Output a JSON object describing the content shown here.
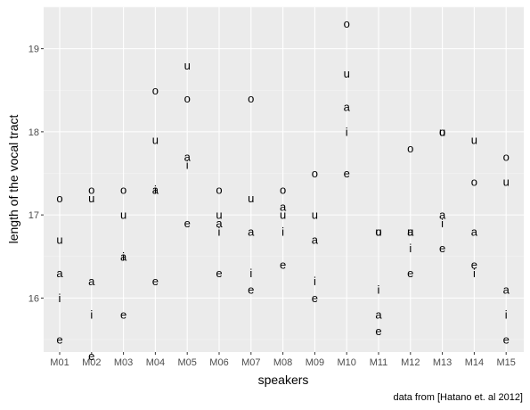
{
  "chart_data": {
    "type": "scatter",
    "title": "",
    "xlabel": "speakers",
    "ylabel": "length of the vocal tract",
    "caption": "data from [Hatano et. al 2012]",
    "categories": [
      "M01",
      "M02",
      "M03",
      "M04",
      "M05",
      "M06",
      "M07",
      "M08",
      "M09",
      "M10",
      "M11",
      "M12",
      "M13",
      "M14",
      "M15"
    ],
    "ylim": [
      15.35,
      19.5
    ],
    "yticks": [
      16,
      17,
      18,
      19
    ],
    "grid": true,
    "legend": "none",
    "colors": {
      "panel": "#ebebeb",
      "grid_major": "#ffffff",
      "grid_minor": "#f5f5f5",
      "text": "#000000",
      "tick": "#4d4d4d"
    },
    "points": [
      {
        "x": "M01",
        "label": "o",
        "y": 17.2
      },
      {
        "x": "M01",
        "label": "u",
        "y": 16.7
      },
      {
        "x": "M01",
        "label": "a",
        "y": 16.3
      },
      {
        "x": "M01",
        "label": "i",
        "y": 16.0
      },
      {
        "x": "M01",
        "label": "e",
        "y": 15.5
      },
      {
        "x": "M02",
        "label": "o",
        "y": 17.3
      },
      {
        "x": "M02",
        "label": "u",
        "y": 17.2
      },
      {
        "x": "M02",
        "label": "a",
        "y": 16.2
      },
      {
        "x": "M02",
        "label": "i",
        "y": 15.8
      },
      {
        "x": "M02",
        "label": "e",
        "y": 15.3
      },
      {
        "x": "M03",
        "label": "o",
        "y": 17.3
      },
      {
        "x": "M03",
        "label": "u",
        "y": 17.0
      },
      {
        "x": "M03",
        "label": "i",
        "y": 16.5
      },
      {
        "x": "M03",
        "label": "a",
        "y": 16.5
      },
      {
        "x": "M03",
        "label": "e",
        "y": 15.8
      },
      {
        "x": "M04",
        "label": "o",
        "y": 18.5
      },
      {
        "x": "M04",
        "label": "u",
        "y": 17.9
      },
      {
        "x": "M04",
        "label": "i",
        "y": 17.3
      },
      {
        "x": "M04",
        "label": "a",
        "y": 17.3
      },
      {
        "x": "M04",
        "label": "e",
        "y": 16.2
      },
      {
        "x": "M05",
        "label": "u",
        "y": 18.8
      },
      {
        "x": "M05",
        "label": "o",
        "y": 18.4
      },
      {
        "x": "M05",
        "label": "a",
        "y": 17.7
      },
      {
        "x": "M05",
        "label": "i",
        "y": 17.6
      },
      {
        "x": "M05",
        "label": "e",
        "y": 16.9
      },
      {
        "x": "M06",
        "label": "o",
        "y": 17.3
      },
      {
        "x": "M06",
        "label": "u",
        "y": 17.0
      },
      {
        "x": "M06",
        "label": "a",
        "y": 16.9
      },
      {
        "x": "M06",
        "label": "i",
        "y": 16.8
      },
      {
        "x": "M06",
        "label": "e",
        "y": 16.3
      },
      {
        "x": "M07",
        "label": "o",
        "y": 18.4
      },
      {
        "x": "M07",
        "label": "u",
        "y": 17.2
      },
      {
        "x": "M07",
        "label": "a",
        "y": 16.8
      },
      {
        "x": "M07",
        "label": "i",
        "y": 16.3
      },
      {
        "x": "M07",
        "label": "e",
        "y": 16.1
      },
      {
        "x": "M08",
        "label": "o",
        "y": 17.3
      },
      {
        "x": "M08",
        "label": "a",
        "y": 17.1
      },
      {
        "x": "M08",
        "label": "u",
        "y": 17.0
      },
      {
        "x": "M08",
        "label": "i",
        "y": 16.8
      },
      {
        "x": "M08",
        "label": "e",
        "y": 16.4
      },
      {
        "x": "M09",
        "label": "o",
        "y": 17.5
      },
      {
        "x": "M09",
        "label": "u",
        "y": 17.0
      },
      {
        "x": "M09",
        "label": "a",
        "y": 16.7
      },
      {
        "x": "M09",
        "label": "i",
        "y": 16.2
      },
      {
        "x": "M09",
        "label": "e",
        "y": 16.0
      },
      {
        "x": "M10",
        "label": "o",
        "y": 19.3
      },
      {
        "x": "M10",
        "label": "u",
        "y": 18.7
      },
      {
        "x": "M10",
        "label": "a",
        "y": 18.3
      },
      {
        "x": "M10",
        "label": "i",
        "y": 18.0
      },
      {
        "x": "M10",
        "label": "e",
        "y": 17.5
      },
      {
        "x": "M11",
        "label": "u",
        "y": 16.8
      },
      {
        "x": "M11",
        "label": "o",
        "y": 16.8
      },
      {
        "x": "M11",
        "label": "i",
        "y": 16.1
      },
      {
        "x": "M11",
        "label": "a",
        "y": 15.8
      },
      {
        "x": "M11",
        "label": "e",
        "y": 15.6
      },
      {
        "x": "M12",
        "label": "o",
        "y": 17.8
      },
      {
        "x": "M12",
        "label": "u",
        "y": 16.8
      },
      {
        "x": "M12",
        "label": "a",
        "y": 16.8
      },
      {
        "x": "M12",
        "label": "i",
        "y": 16.6
      },
      {
        "x": "M12",
        "label": "e",
        "y": 16.3
      },
      {
        "x": "M13",
        "label": "u",
        "y": 18.0
      },
      {
        "x": "M13",
        "label": "o",
        "y": 18.0
      },
      {
        "x": "M13",
        "label": "a",
        "y": 17.0
      },
      {
        "x": "M13",
        "label": "i",
        "y": 16.9
      },
      {
        "x": "M13",
        "label": "e",
        "y": 16.6
      },
      {
        "x": "M14",
        "label": "u",
        "y": 17.9
      },
      {
        "x": "M14",
        "label": "o",
        "y": 17.4
      },
      {
        "x": "M14",
        "label": "a",
        "y": 16.8
      },
      {
        "x": "M14",
        "label": "e",
        "y": 16.4
      },
      {
        "x": "M14",
        "label": "i",
        "y": 16.3
      },
      {
        "x": "M15",
        "label": "o",
        "y": 17.7
      },
      {
        "x": "M15",
        "label": "u",
        "y": 17.4
      },
      {
        "x": "M15",
        "label": "a",
        "y": 16.1
      },
      {
        "x": "M15",
        "label": "i",
        "y": 15.8
      },
      {
        "x": "M15",
        "label": "e",
        "y": 15.5
      }
    ]
  }
}
